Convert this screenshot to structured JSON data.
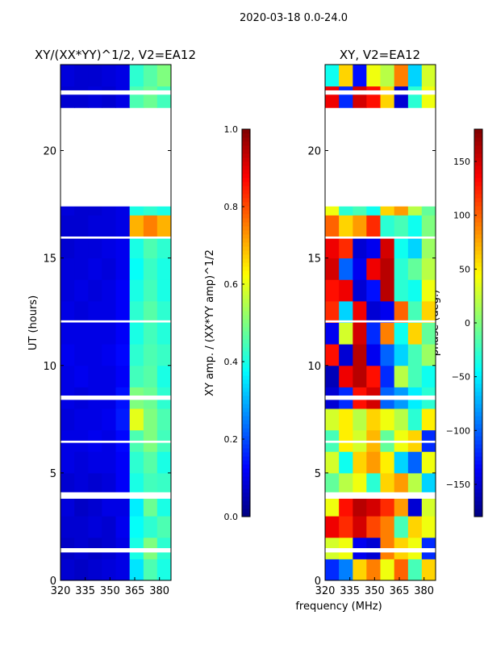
{
  "chart_data": [
    {
      "type": "heatmap",
      "suptitle": "2020-03-18 0.0-24.0",
      "title": "XY/(XX*YY)^1/2, V2=EA12",
      "xlabel": "",
      "ylabel": "UT (hours)",
      "xlim": [
        320,
        387
      ],
      "ylim": [
        0,
        24
      ],
      "xticks": [
        "320",
        "335",
        "350",
        "365",
        "380"
      ],
      "yticks": [
        "0",
        "5",
        "10",
        "15",
        "20"
      ],
      "colorbar": {
        "label": "XY amp. / (XX*YY amp)^1/2",
        "range": [
          0,
          1
        ],
        "ticks": [
          "0.0",
          "0.2",
          "0.4",
          "0.6",
          "0.8",
          "1.0"
        ]
      },
      "flagged_hours": [
        [
          17.4,
          21.6
        ],
        [
          3.8,
          4.1
        ],
        [
          1.3,
          1.5
        ],
        [
          6.4,
          6.5
        ],
        [
          8.4,
          8.6
        ],
        [
          12.0,
          12.1
        ],
        [
          15.9,
          16.0
        ],
        [
          22.6,
          22.8
        ]
      ],
      "freq_bins": [
        320,
        328.4,
        336.8,
        345.1,
        353.5,
        361.9,
        370.3,
        378.6
      ],
      "values": [
        [
          0.08,
          0.07,
          0.08,
          0.09,
          0.1,
          0.35,
          0.45,
          0.4
        ],
        [
          0.07,
          0.08,
          0.07,
          0.08,
          0.1,
          0.4,
          0.5,
          0.42
        ],
        [
          0.08,
          0.08,
          0.09,
          0.08,
          0.11,
          0.38,
          0.42,
          0.45
        ],
        [
          0.09,
          0.07,
          0.08,
          0.1,
          0.1,
          0.36,
          0.48,
          0.4
        ],
        [
          0.08,
          0.09,
          0.08,
          0.09,
          0.12,
          0.4,
          0.44,
          0.43
        ],
        [
          0.1,
          0.09,
          0.1,
          0.1,
          0.12,
          0.42,
          0.46,
          0.4
        ],
        [
          0.1,
          0.1,
          0.11,
          0.1,
          0.13,
          0.45,
          0.5,
          0.44
        ],
        [
          0.09,
          0.1,
          0.1,
          0.11,
          0.15,
          0.6,
          0.5,
          0.45
        ],
        [
          0.1,
          0.09,
          0.1,
          0.1,
          0.14,
          0.5,
          0.48,
          0.42
        ],
        [
          0.1,
          0.11,
          0.1,
          0.1,
          0.12,
          0.44,
          0.46,
          0.4
        ],
        [
          0.11,
          0.1,
          0.1,
          0.11,
          0.13,
          0.42,
          0.45,
          0.43
        ],
        [
          0.1,
          0.1,
          0.1,
          0.1,
          0.12,
          0.4,
          0.44,
          0.41
        ],
        [
          0.1,
          0.09,
          0.1,
          0.1,
          0.12,
          0.42,
          0.46,
          0.42
        ],
        [
          0.09,
          0.1,
          0.09,
          0.1,
          0.12,
          0.4,
          0.44,
          0.4
        ],
        [
          0.09,
          0.09,
          0.1,
          0.09,
          0.11,
          0.38,
          0.43,
          0.4
        ],
        [
          0.08,
          0.09,
          0.09,
          0.1,
          0.11,
          0.4,
          0.45,
          0.42
        ],
        [
          0.08,
          0.08,
          0.09,
          0.09,
          0.1,
          0.7,
          0.75,
          0.7
        ],
        [
          0.09,
          0.08,
          0.08,
          0.09,
          0.1,
          0.4,
          0.42,
          0.4
        ],
        [
          null,
          null,
          null,
          null,
          null,
          null,
          null,
          null
        ],
        [
          null,
          null,
          null,
          null,
          null,
          null,
          null,
          null
        ],
        [
          null,
          null,
          null,
          null,
          null,
          null,
          null,
          null
        ],
        [
          null,
          null,
          null,
          null,
          null,
          null,
          null,
          null
        ],
        [
          0.08,
          0.08,
          0.09,
          0.08,
          0.1,
          0.45,
          0.48,
          0.44
        ],
        [
          0.09,
          0.08,
          0.08,
          0.09,
          0.1,
          0.42,
          0.46,
          0.5
        ]
      ]
    },
    {
      "type": "heatmap",
      "title": "XY, V2=EA12",
      "xlabel": "frequency (MHz)",
      "ylabel": "",
      "xlim": [
        320,
        387
      ],
      "ylim": [
        0,
        24
      ],
      "xticks": [
        "320",
        "335",
        "350",
        "365",
        "380"
      ],
      "yticks": [
        "0",
        "5",
        "10",
        "15",
        "20"
      ],
      "colorbar": {
        "label": "phase (deg.)",
        "range": [
          -180,
          180
        ],
        "ticks": [
          "−150",
          "−100",
          "−50",
          "0",
          "50",
          "100",
          "150"
        ]
      },
      "flagged_hours": [
        [
          17.4,
          21.6
        ],
        [
          3.8,
          4.1
        ],
        [
          1.3,
          1.5
        ],
        [
          6.4,
          6.5
        ],
        [
          8.4,
          8.6
        ],
        [
          12.0,
          12.1
        ],
        [
          15.9,
          16.0
        ],
        [
          22.6,
          22.8
        ]
      ],
      "freq_bins": [
        320,
        328.4,
        336.8,
        345.1,
        353.5,
        361.9,
        370.3,
        378.6
      ],
      "values": [
        [
          -120,
          -90,
          60,
          90,
          40,
          100,
          -20,
          60
        ],
        [
          30,
          40,
          -140,
          -150,
          90,
          60,
          40,
          -120
        ],
        [
          140,
          120,
          150,
          110,
          90,
          -20,
          60,
          40
        ],
        [
          40,
          130,
          160,
          150,
          120,
          80,
          -150,
          30
        ],
        [
          -10,
          20,
          40,
          -30,
          60,
          80,
          20,
          -60
        ],
        [
          30,
          -40,
          60,
          80,
          50,
          -60,
          -100,
          40
        ],
        [
          -20,
          50,
          30,
          70,
          -10,
          40,
          60,
          -120
        ],
        [
          30,
          50,
          20,
          60,
          40,
          20,
          -30,
          50
        ],
        [
          -150,
          -120,
          130,
          150,
          -100,
          -80,
          -50,
          -30
        ],
        [
          -160,
          140,
          160,
          130,
          -120,
          20,
          -20,
          -40
        ],
        [
          130,
          -150,
          160,
          -140,
          -100,
          -60,
          -20,
          10
        ],
        [
          -140,
          30,
          150,
          -120,
          90,
          -40,
          60,
          -10
        ],
        [
          120,
          -60,
          140,
          -150,
          -140,
          100,
          -20,
          60
        ],
        [
          130,
          140,
          -150,
          -130,
          160,
          -30,
          -40,
          40
        ],
        [
          150,
          -100,
          -140,
          140,
          160,
          -30,
          -10,
          20
        ],
        [
          140,
          120,
          -150,
          -140,
          150,
          -40,
          -60,
          10
        ],
        [
          100,
          60,
          80,
          120,
          -30,
          -20,
          -40,
          0
        ],
        [
          40,
          -30,
          -20,
          -40,
          60,
          80,
          20,
          -10
        ],
        [
          null,
          null,
          null,
          null,
          null,
          null,
          null,
          null
        ],
        [
          null,
          null,
          null,
          null,
          null,
          null,
          null,
          null
        ],
        [
          null,
          null,
          null,
          null,
          null,
          null,
          null,
          null
        ],
        [
          null,
          null,
          null,
          null,
          null,
          null,
          null,
          null
        ],
        [
          140,
          -120,
          150,
          130,
          60,
          -150,
          -30,
          40
        ],
        [
          -40,
          60,
          -130,
          40,
          20,
          90,
          -60,
          30
        ]
      ]
    }
  ]
}
